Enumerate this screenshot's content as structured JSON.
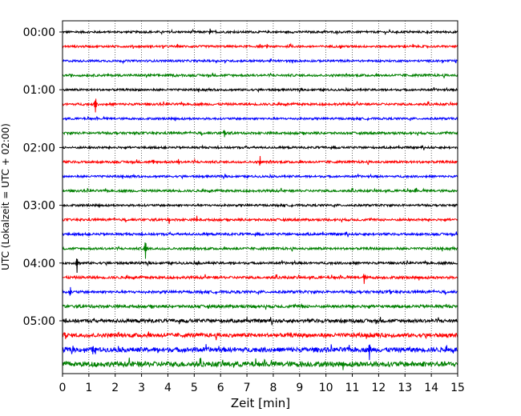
{
  "chart_data": {
    "type": "line",
    "title": "",
    "xlabel": "Zeit  [min]",
    "ylabel": "UTC (Lokalzeit = UTC + 02:00)",
    "xlim": [
      0,
      15
    ],
    "x_ticks": [
      "0",
      "1",
      "2",
      "3",
      "4",
      "5",
      "6",
      "7",
      "8",
      "9",
      "10",
      "11",
      "12",
      "13",
      "14",
      "15"
    ],
    "y_ticks": [
      "00:00",
      "01:00",
      "02:00",
      "03:00",
      "04:00",
      "05:00"
    ],
    "grid": "vertical-dotted",
    "line_interval_minutes": 15,
    "trace_count": 24,
    "trace_colors": [
      "#000000",
      "#ff0000",
      "#0000ff",
      "#008000"
    ],
    "events": [
      {
        "trace": 0,
        "minute": 5.6,
        "amplitude": 0.5
      },
      {
        "trace": 1,
        "minute": 13.0,
        "amplitude": 0.3
      },
      {
        "trace": 1,
        "minute": 13.3,
        "amplitude": 0.3
      },
      {
        "trace": 5,
        "minute": 1.25,
        "amplitude": 1.6
      },
      {
        "trace": 7,
        "minute": 6.15,
        "amplitude": 0.8
      },
      {
        "trace": 9,
        "minute": 3.45,
        "amplitude": 0.5
      },
      {
        "trace": 9,
        "minute": 4.4,
        "amplitude": 0.6
      },
      {
        "trace": 9,
        "minute": 7.5,
        "amplitude": 0.9
      },
      {
        "trace": 11,
        "minute": 13.4,
        "amplitude": 0.6
      },
      {
        "trace": 13,
        "minute": 4.05,
        "amplitude": 0.7
      },
      {
        "trace": 13,
        "minute": 5.1,
        "amplitude": 0.6
      },
      {
        "trace": 13,
        "minute": 7.1,
        "amplitude": 0.3
      },
      {
        "trace": 15,
        "minute": 3.15,
        "amplitude": 1.9
      },
      {
        "trace": 15,
        "minute": 6.6,
        "amplitude": 0.4
      },
      {
        "trace": 16,
        "minute": 0.55,
        "amplitude": 1.6
      },
      {
        "trace": 16,
        "minute": 5.15,
        "amplitude": 0.4
      },
      {
        "trace": 17,
        "minute": 11.45,
        "amplitude": 1.1
      },
      {
        "trace": 18,
        "minute": 0.3,
        "amplitude": 0.9
      },
      {
        "trace": 18,
        "minute": 12.45,
        "amplitude": 0.4
      },
      {
        "trace": 19,
        "minute": 7.3,
        "amplitude": 0.4
      },
      {
        "trace": 19,
        "minute": 9.1,
        "amplitude": 0.4
      },
      {
        "trace": 20,
        "minute": 11.05,
        "amplitude": 0.3
      },
      {
        "trace": 21,
        "minute": 0.1,
        "amplitude": 0.7
      },
      {
        "trace": 21,
        "minute": 11.55,
        "amplitude": 0.4
      },
      {
        "trace": 22,
        "minute": 11.65,
        "amplitude": 2.2
      },
      {
        "trace": 22,
        "minute": 1.15,
        "amplitude": 0.5
      },
      {
        "trace": 23,
        "minute": 9.0,
        "amplitude": 0.3
      }
    ],
    "noise_level": [
      0.18,
      0.18,
      0.18,
      0.2,
      0.18,
      0.2,
      0.18,
      0.2,
      0.18,
      0.2,
      0.18,
      0.2,
      0.18,
      0.2,
      0.2,
      0.2,
      0.2,
      0.22,
      0.22,
      0.25,
      0.3,
      0.35,
      0.4,
      0.45
    ]
  }
}
